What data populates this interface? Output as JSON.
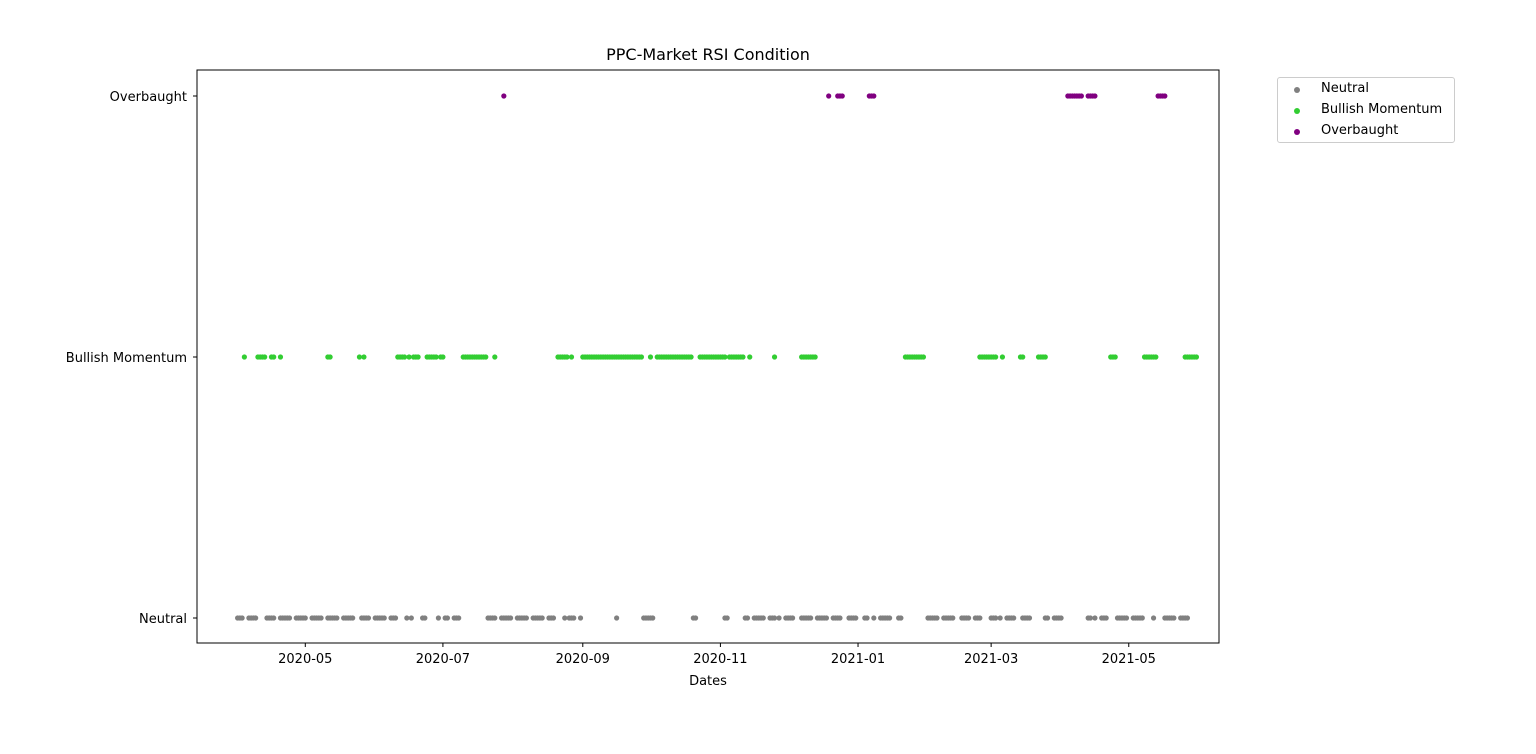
{
  "chart_data": {
    "type": "scatter",
    "title": "PPC-Market RSI Condition",
    "xlabel": "Dates",
    "ylabel": "",
    "x_type": "date",
    "xlim": [
      "2020-03-14",
      "2021-06-10"
    ],
    "x_ticks": [
      "2020-05-01",
      "2020-07-01",
      "2020-09-01",
      "2020-11-01",
      "2021-01-01",
      "2021-03-01",
      "2021-05-01"
    ],
    "x_tick_labels": [
      "2020-05",
      "2020-07",
      "2020-09",
      "2020-11",
      "2021-01",
      "2021-03",
      "2021-05"
    ],
    "y_categories": [
      "Neutral",
      "Bullish Momentum",
      "Overbaught"
    ],
    "legend_position": "outside-upper-right",
    "grid": false,
    "series": [
      {
        "name": "Neutral",
        "color": "#808080",
        "category": "Neutral",
        "x": [
          "2020-04-01",
          "2020-04-02",
          "2020-04-03",
          "2020-04-06",
          "2020-04-07",
          "2020-04-08",
          "2020-04-09",
          "2020-04-14",
          "2020-04-15",
          "2020-04-16",
          "2020-04-17",
          "2020-04-20",
          "2020-04-21",
          "2020-04-22",
          "2020-04-23",
          "2020-04-24",
          "2020-04-27",
          "2020-04-28",
          "2020-04-29",
          "2020-04-30",
          "2020-05-01",
          "2020-05-04",
          "2020-05-05",
          "2020-05-06",
          "2020-05-07",
          "2020-05-08",
          "2020-05-11",
          "2020-05-12",
          "2020-05-13",
          "2020-05-14",
          "2020-05-15",
          "2020-05-18",
          "2020-05-19",
          "2020-05-20",
          "2020-05-21",
          "2020-05-22",
          "2020-05-26",
          "2020-05-27",
          "2020-05-28",
          "2020-05-29",
          "2020-06-01",
          "2020-06-02",
          "2020-06-03",
          "2020-06-04",
          "2020-06-05",
          "2020-06-08",
          "2020-06-09",
          "2020-06-10",
          "2020-06-15",
          "2020-06-17",
          "2020-06-22",
          "2020-06-23",
          "2020-06-29",
          "2020-07-02",
          "2020-07-03",
          "2020-07-06",
          "2020-07-07",
          "2020-07-08",
          "2020-07-21",
          "2020-07-22",
          "2020-07-23",
          "2020-07-24",
          "2020-07-27",
          "2020-07-28",
          "2020-07-29",
          "2020-07-30",
          "2020-07-31",
          "2020-08-03",
          "2020-08-04",
          "2020-08-05",
          "2020-08-06",
          "2020-08-07",
          "2020-08-10",
          "2020-08-11",
          "2020-08-12",
          "2020-08-13",
          "2020-08-14",
          "2020-08-17",
          "2020-08-18",
          "2020-08-19",
          "2020-08-24",
          "2020-08-26",
          "2020-08-27",
          "2020-08-28",
          "2020-08-31",
          "2020-09-16",
          "2020-09-28",
          "2020-09-29",
          "2020-09-30",
          "2020-10-01",
          "2020-10-02",
          "2020-10-20",
          "2020-10-21",
          "2020-11-03",
          "2020-11-04",
          "2020-11-12",
          "2020-11-13",
          "2020-11-16",
          "2020-11-17",
          "2020-11-18",
          "2020-11-19",
          "2020-11-20",
          "2020-11-23",
          "2020-11-24",
          "2020-11-25",
          "2020-11-27",
          "2020-11-30",
          "2020-12-01",
          "2020-12-02",
          "2020-12-03",
          "2020-12-07",
          "2020-12-08",
          "2020-12-09",
          "2020-12-10",
          "2020-12-11",
          "2020-12-14",
          "2020-12-15",
          "2020-12-16",
          "2020-12-17",
          "2020-12-18",
          "2020-12-21",
          "2020-12-22",
          "2020-12-23",
          "2020-12-24",
          "2020-12-28",
          "2020-12-29",
          "2020-12-30",
          "2020-12-31",
          "2021-01-04",
          "2021-01-05",
          "2021-01-08",
          "2021-01-11",
          "2021-01-12",
          "2021-01-13",
          "2021-01-14",
          "2021-01-15",
          "2021-01-19",
          "2021-01-20",
          "2021-02-01",
          "2021-02-02",
          "2021-02-03",
          "2021-02-04",
          "2021-02-05",
          "2021-02-08",
          "2021-02-09",
          "2021-02-10",
          "2021-02-11",
          "2021-02-12",
          "2021-02-16",
          "2021-02-17",
          "2021-02-18",
          "2021-02-19",
          "2021-02-22",
          "2021-02-23",
          "2021-02-24",
          "2021-03-01",
          "2021-03-02",
          "2021-03-03",
          "2021-03-05",
          "2021-03-08",
          "2021-03-09",
          "2021-03-10",
          "2021-03-11",
          "2021-03-15",
          "2021-03-16",
          "2021-03-17",
          "2021-03-18",
          "2021-03-25",
          "2021-03-26",
          "2021-03-29",
          "2021-03-30",
          "2021-03-31",
          "2021-04-01",
          "2021-04-13",
          "2021-04-14",
          "2021-04-16",
          "2021-04-19",
          "2021-04-20",
          "2021-04-21",
          "2021-04-26",
          "2021-04-27",
          "2021-04-28",
          "2021-04-29",
          "2021-04-30",
          "2021-05-03",
          "2021-05-04",
          "2021-05-05",
          "2021-05-06",
          "2021-05-07",
          "2021-05-12",
          "2021-05-17",
          "2021-05-18",
          "2021-05-19",
          "2021-05-20",
          "2021-05-21",
          "2021-05-24",
          "2021-05-25",
          "2021-05-26",
          "2021-05-27"
        ]
      },
      {
        "name": "Bullish Momentum",
        "color": "#32cd32",
        "category": "Bullish Momentum",
        "x": [
          "2020-04-04",
          "2020-04-10",
          "2020-04-11",
          "2020-04-12",
          "2020-04-13",
          "2020-04-16",
          "2020-04-17",
          "2020-04-20",
          "2020-05-11",
          "2020-05-12",
          "2020-05-25",
          "2020-05-27",
          "2020-06-11",
          "2020-06-12",
          "2020-06-13",
          "2020-06-14",
          "2020-06-16",
          "2020-06-18",
          "2020-06-19",
          "2020-06-20",
          "2020-06-24",
          "2020-06-25",
          "2020-06-26",
          "2020-06-27",
          "2020-06-28",
          "2020-06-30",
          "2020-07-01",
          "2020-07-10",
          "2020-07-11",
          "2020-07-12",
          "2020-07-13",
          "2020-07-14",
          "2020-07-15",
          "2020-07-16",
          "2020-07-17",
          "2020-07-18",
          "2020-07-19",
          "2020-07-20",
          "2020-07-24",
          "2020-08-21",
          "2020-08-22",
          "2020-08-23",
          "2020-08-24",
          "2020-08-25",
          "2020-08-27",
          "2020-09-01",
          "2020-09-02",
          "2020-09-03",
          "2020-09-04",
          "2020-09-05",
          "2020-09-06",
          "2020-09-07",
          "2020-09-08",
          "2020-09-09",
          "2020-09-10",
          "2020-09-11",
          "2020-09-12",
          "2020-09-13",
          "2020-09-14",
          "2020-09-15",
          "2020-09-16",
          "2020-09-17",
          "2020-09-18",
          "2020-09-19",
          "2020-09-20",
          "2020-09-21",
          "2020-09-22",
          "2020-09-23",
          "2020-09-24",
          "2020-09-25",
          "2020-09-26",
          "2020-09-27",
          "2020-10-01",
          "2020-10-04",
          "2020-10-05",
          "2020-10-06",
          "2020-10-07",
          "2020-10-08",
          "2020-10-09",
          "2020-10-10",
          "2020-10-11",
          "2020-10-12",
          "2020-10-13",
          "2020-10-14",
          "2020-10-15",
          "2020-10-16",
          "2020-10-17",
          "2020-10-18",
          "2020-10-19",
          "2020-10-23",
          "2020-10-24",
          "2020-10-25",
          "2020-10-26",
          "2020-10-27",
          "2020-10-28",
          "2020-10-29",
          "2020-10-30",
          "2020-10-31",
          "2020-11-01",
          "2020-11-02",
          "2020-11-03",
          "2020-11-05",
          "2020-11-06",
          "2020-11-07",
          "2020-11-08",
          "2020-11-09",
          "2020-11-10",
          "2020-11-11",
          "2020-11-14",
          "2020-11-25",
          "2020-12-07",
          "2020-12-08",
          "2020-12-09",
          "2020-12-10",
          "2020-12-11",
          "2020-12-12",
          "2020-12-13",
          "2021-01-22",
          "2021-01-23",
          "2021-01-24",
          "2021-01-25",
          "2021-01-26",
          "2021-01-27",
          "2021-01-28",
          "2021-01-29",
          "2021-01-30",
          "2021-02-24",
          "2021-02-25",
          "2021-02-26",
          "2021-02-27",
          "2021-02-28",
          "2021-03-01",
          "2021-03-02",
          "2021-03-03",
          "2021-03-06",
          "2021-03-14",
          "2021-03-15",
          "2021-03-22",
          "2021-03-23",
          "2021-03-24",
          "2021-03-25",
          "2021-04-23",
          "2021-04-24",
          "2021-04-25",
          "2021-05-08",
          "2021-05-09",
          "2021-05-10",
          "2021-05-11",
          "2021-05-12",
          "2021-05-13",
          "2021-05-26",
          "2021-05-27",
          "2021-05-28",
          "2021-05-29",
          "2021-05-30",
          "2021-05-31"
        ]
      },
      {
        "name": "Overbaught",
        "color": "#800080",
        "category": "Overbaught",
        "x": [
          "2020-07-28",
          "2020-12-19",
          "2020-12-23",
          "2020-12-24",
          "2020-12-25",
          "2021-01-06",
          "2021-01-07",
          "2021-01-08",
          "2021-04-04",
          "2021-04-05",
          "2021-04-06",
          "2021-04-07",
          "2021-04-08",
          "2021-04-09",
          "2021-04-10",
          "2021-04-13",
          "2021-04-14",
          "2021-04-15",
          "2021-04-16",
          "2021-05-14",
          "2021-05-15",
          "2021-05-16",
          "2021-05-17"
        ]
      }
    ]
  }
}
